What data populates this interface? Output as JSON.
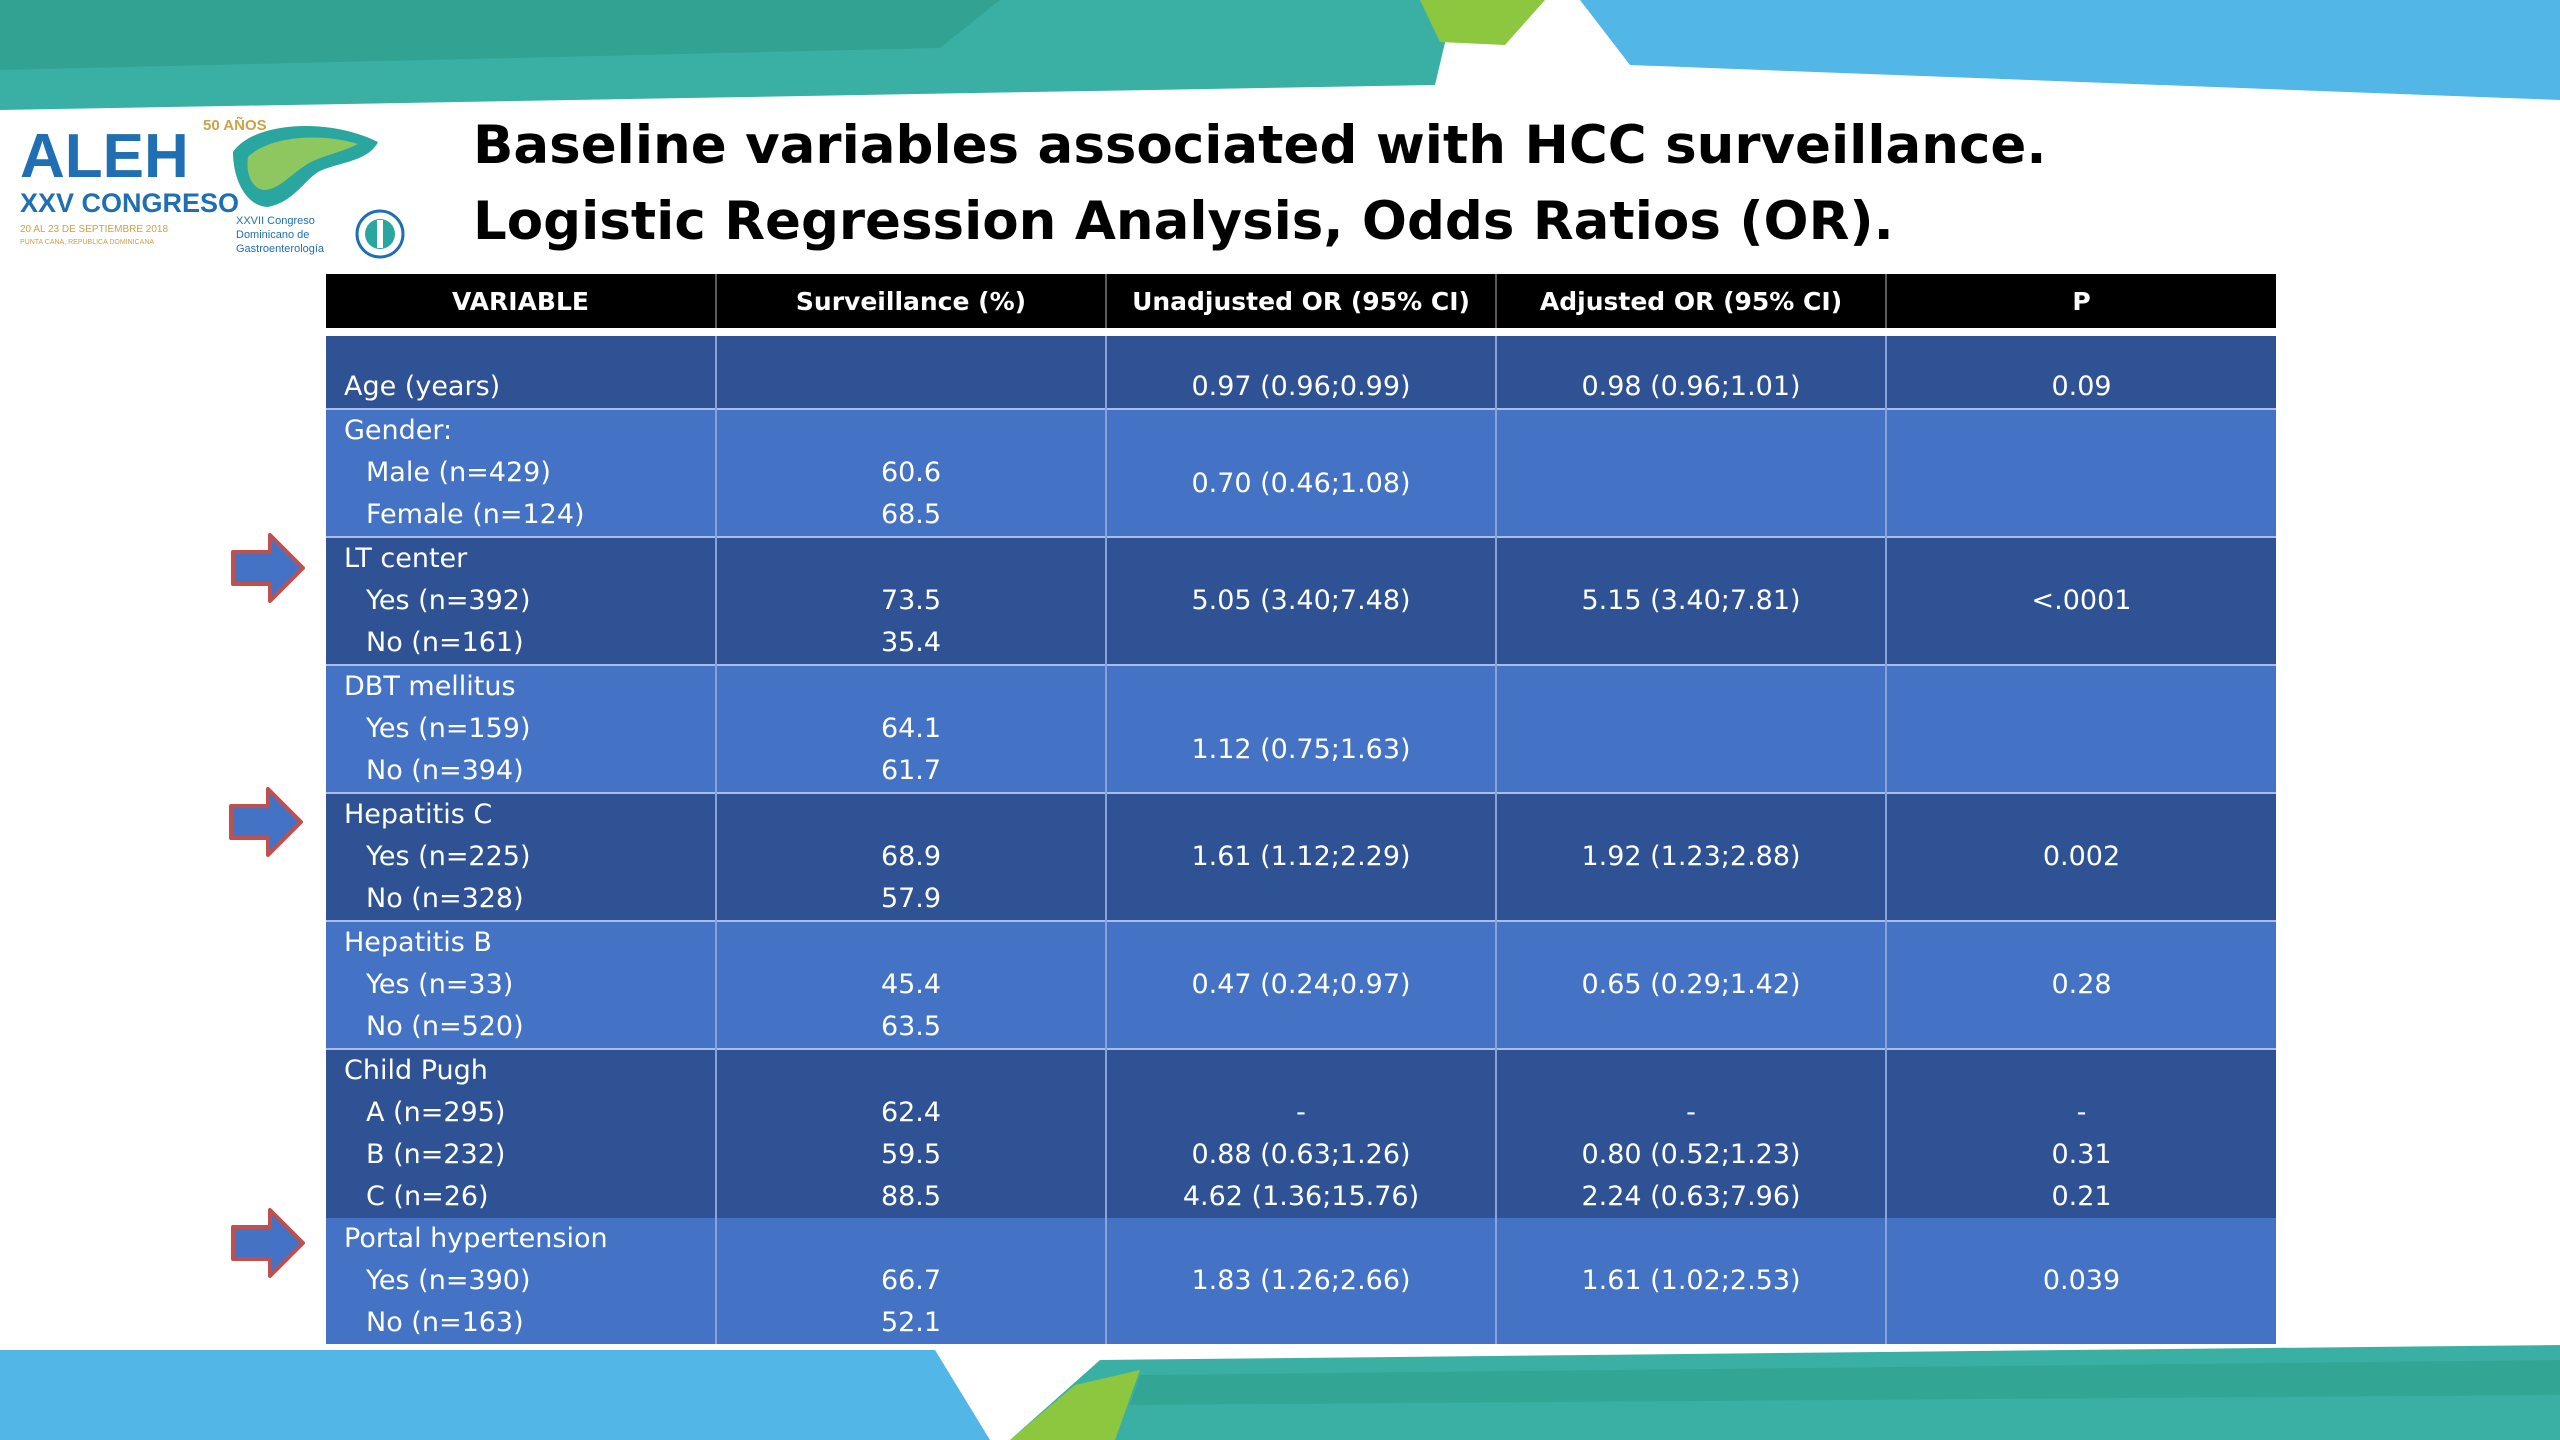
{
  "logo": {
    "brand": "ALEH",
    "anniversary": "50 AÑOS",
    "congress": "XXV CONGRESO",
    "dates": "20 AL 23 DE SEPTIEMBRE 2018",
    "location": "PUNTA CANA, REPUBLICA DOMINICANA",
    "partner": [
      "XXVII Congreso",
      "Dominicano de",
      "Gastroenterología"
    ]
  },
  "title": {
    "line1": "Baseline variables associated with HCC surveillance.",
    "line2": "Logistic Regression Analysis, Odds Ratios (OR)."
  },
  "table": {
    "headers": [
      "VARIABLE",
      "Surveillance (%)",
      "Unadjusted OR (95% CI)",
      "Adjusted OR (95% CI)",
      "P"
    ],
    "groups": {
      "age": {
        "label": "Age (years)",
        "unadjusted": "0.97 (0.96;0.99)",
        "adjusted": "0.98 (0.96;1.01)",
        "p": "0.09"
      },
      "gender": {
        "label": "Gender:",
        "rows": [
          {
            "label": "Male (n=429)",
            "pct": "60.6"
          },
          {
            "label": "Female (n=124)",
            "pct": "68.5"
          }
        ],
        "unadjusted": "0.70 (0.46;1.08)"
      },
      "lt": {
        "label": "LT center",
        "rows": [
          {
            "label": "Yes (n=392)",
            "pct": "73.5"
          },
          {
            "label": "No (n=161)",
            "pct": "35.4"
          }
        ],
        "unadjusted": "5.05 (3.40;7.48)",
        "adjusted": "5.15 (3.40;7.81)",
        "p": "<.0001"
      },
      "dbt": {
        "label": "DBT mellitus",
        "rows": [
          {
            "label": "Yes (n=159)",
            "pct": "64.1"
          },
          {
            "label": "No (n=394)",
            "pct": "61.7"
          }
        ],
        "unadjusted": "1.12 (0.75;1.63)"
      },
      "hcv": {
        "label": "Hepatitis C",
        "rows": [
          {
            "label": "Yes (n=225)",
            "pct": "68.9"
          },
          {
            "label": "No (n=328)",
            "pct": "57.9"
          }
        ],
        "unadjusted": "1.61 (1.12;2.29)",
        "adjusted": "1.92 (1.23;2.88)",
        "p": "0.002"
      },
      "hbv": {
        "label": "Hepatitis B",
        "rows": [
          {
            "label": "Yes (n=33)",
            "pct": "45.4"
          },
          {
            "label": "No (n=520)",
            "pct": "63.5"
          }
        ],
        "unadjusted": "0.47 (0.24;0.97)",
        "adjusted": "0.65 (0.29;1.42)",
        "p": "0.28"
      },
      "child": {
        "label": "Child Pugh",
        "rows": [
          {
            "label": "A (n=295)",
            "pct": "62.4",
            "unadjusted": "-",
            "adjusted": "-",
            "p": "-"
          },
          {
            "label": "B (n=232)",
            "pct": "59.5",
            "unadjusted": "0.88 (0.63;1.26)",
            "adjusted": "0.80 (0.52;1.23)",
            "p": "0.31"
          },
          {
            "label": "C (n=26)",
            "pct": "88.5",
            "unadjusted": "4.62 (1.36;15.76)",
            "adjusted": "2.24 (0.63;7.96)",
            "p": "0.21"
          }
        ]
      },
      "ph": {
        "label": "Portal hypertension",
        "rows": [
          {
            "label": "Yes (n=390)",
            "pct": "66.7"
          },
          {
            "label": "No (n=163)",
            "pct": "52.1"
          }
        ],
        "unadjusted": "1.83 (1.26;2.66)",
        "adjusted": "1.61 (1.02;2.53)",
        "p": "0.039"
      }
    }
  },
  "colors": {
    "header_bg": "#000000",
    "row_dark": "#2f5294",
    "row_light": "#4472c4",
    "arrow_fill": "#4472c4",
    "arrow_stroke": "#c0504d",
    "band_teal": "#3aaa9c",
    "band_blue": "#4fb3e3",
    "band_green": "#8dc63f"
  },
  "icons": [
    "right-arrow-icon",
    "liver-icon",
    "medical-emblem-icon"
  ]
}
